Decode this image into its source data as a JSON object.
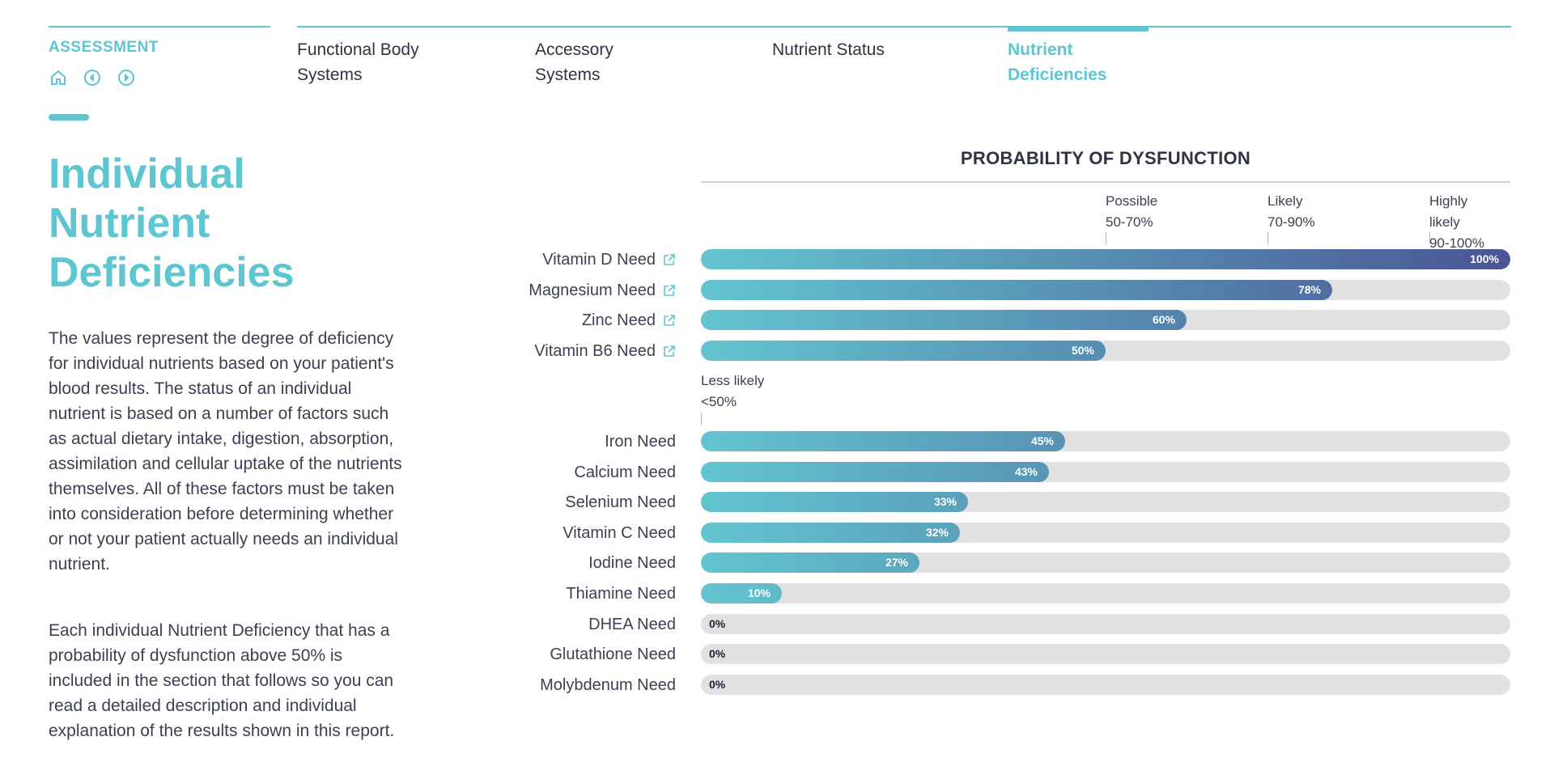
{
  "nav": {
    "section_label": "ASSESSMENT",
    "tabs": [
      {
        "label_line1": "Functional Body",
        "label_line2": "Systems",
        "active": false
      },
      {
        "label_line1": "Accessory",
        "label_line2": "Systems",
        "active": false
      },
      {
        "label_line1": "Nutrient Status",
        "label_line2": "",
        "active": false
      },
      {
        "label_line1": "Nutrient",
        "label_line2": "Deficiencies",
        "active": true
      }
    ],
    "icons": [
      "home-icon",
      "arrow-left-circle-icon",
      "arrow-right-circle-icon"
    ]
  },
  "page": {
    "title_line1": "Individual",
    "title_line2": "Nutrient",
    "title_line3": "Deficiencies",
    "paragraph1": "The values represent the degree of deficiency for individual nutrients based on your patient's blood results. The status of an individual nutrient is based on a number of factors such as actual dietary intake, digestion, absorption, assimilation and cellular uptake of the nutrients themselves. All of these factors must be taken into consideration before determining whether or not your patient actually needs an individual nutrient.",
    "paragraph2": "Each individual Nutrient Deficiency that has a probability of dysfunction above 50% is included in the section that follows so you can read a detailed description and individual explanation of the results shown in this report."
  },
  "colors": {
    "accent": "#5ec6d0",
    "bar_start": "#63c5cf",
    "bar_end": "#4a5595",
    "track": "#e1e1e3"
  },
  "chart_data": {
    "type": "bar",
    "orientation": "horizontal",
    "title": "PROBABILITY OF DYSFUNCTION",
    "xlim": [
      0,
      100
    ],
    "unit": "%",
    "thresholds": [
      {
        "line1": "Possible",
        "line2": "50-70%",
        "line3": "",
        "value": 50
      },
      {
        "line1": "Likely",
        "line2": "70-90%",
        "line3": "",
        "value": 70
      },
      {
        "line1": "Highly",
        "line2": "likely",
        "line3": "90-100%",
        "value": 90
      }
    ],
    "less_likely": {
      "line1": "Less likely",
      "line2": "<50%",
      "value": 0
    },
    "categories": [
      "Vitamin D Need",
      "Magnesium Need",
      "Zinc Need",
      "Vitamin B6 Need",
      "Iron Need",
      "Calcium Need",
      "Selenium Need",
      "Vitamin C Need",
      "Iodine Need",
      "Thiamine Need",
      "DHEA Need",
      "Glutathione Need",
      "Molybdenum Need"
    ],
    "values": [
      100,
      78,
      60,
      50,
      45,
      43,
      33,
      32,
      27,
      10,
      0,
      0,
      0
    ],
    "labels": [
      "100%",
      "78%",
      "60%",
      "50%",
      "45%",
      "43%",
      "33%",
      "32%",
      "27%",
      "10%",
      "0%",
      "0%",
      "0%"
    ],
    "has_link": [
      true,
      true,
      true,
      true,
      false,
      false,
      false,
      false,
      false,
      false,
      false,
      false,
      false
    ]
  }
}
